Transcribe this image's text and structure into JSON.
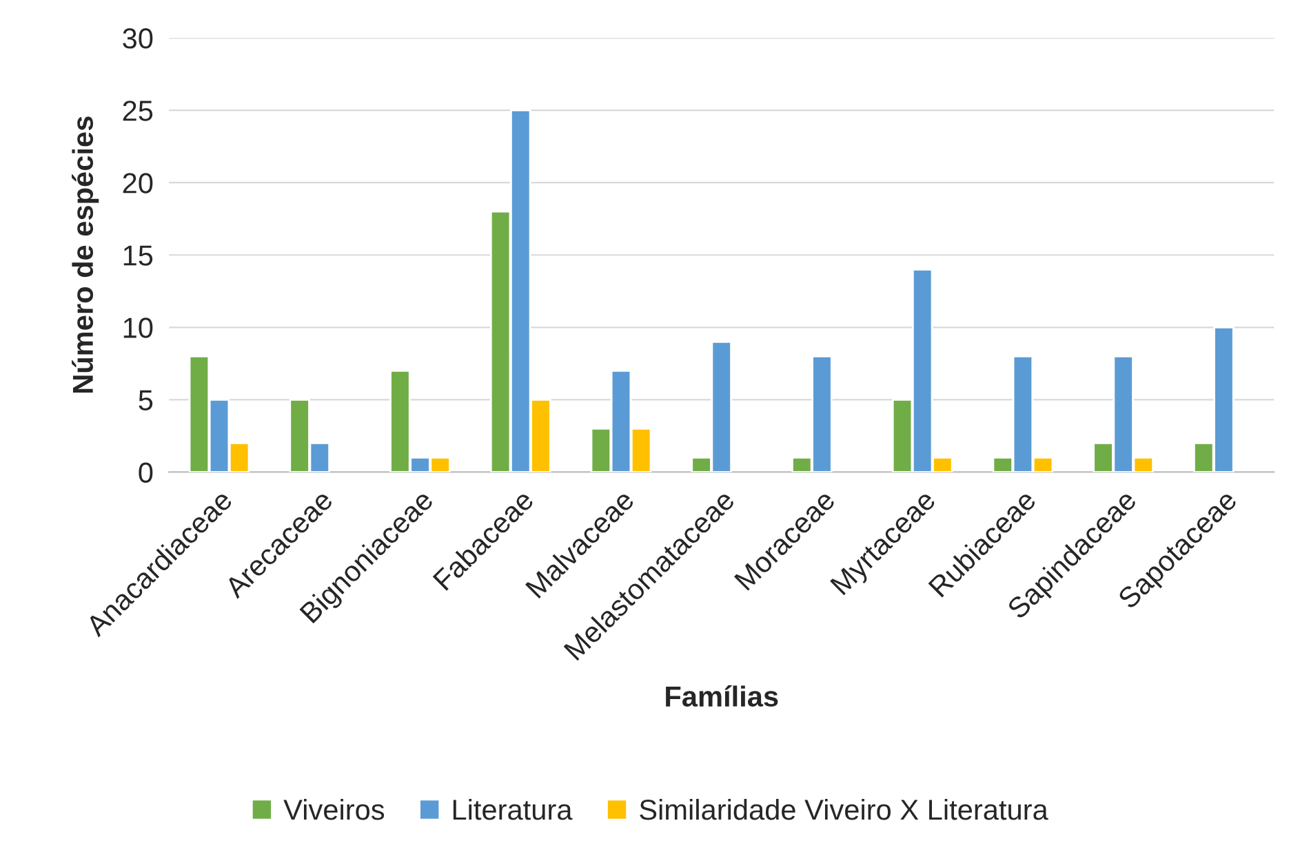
{
  "chart_data": {
    "type": "bar",
    "xlabel": "Famílias",
    "ylabel": "Número de espécies",
    "categories": [
      "Anacardiaceae",
      "Arecaceae",
      "Bignoniaceae",
      "Fabaceae",
      "Malvaceae",
      "Melastomataceae",
      "Moraceae",
      "Myrtaceae",
      "Rubiaceae",
      "Sapindaceae",
      "Sapotaceae"
    ],
    "series": [
      {
        "name": "Viveiros",
        "color": "#70ad47",
        "values": [
          8,
          5,
          7,
          18,
          3,
          1,
          1,
          5,
          1,
          2,
          2
        ]
      },
      {
        "name": "Literatura",
        "color": "#5b9bd5",
        "values": [
          5,
          2,
          1,
          25,
          7,
          9,
          8,
          14,
          8,
          8,
          10
        ]
      },
      {
        "name": "Similaridade Viveiro X Literatura",
        "color": "#ffc000",
        "values": [
          2,
          null,
          1,
          5,
          3,
          null,
          null,
          1,
          1,
          1,
          null
        ]
      }
    ],
    "ylim": [
      0,
      30
    ],
    "yticks": [
      0,
      5,
      10,
      15,
      20,
      25,
      30
    ],
    "grid": "y",
    "legend": "bottom"
  }
}
